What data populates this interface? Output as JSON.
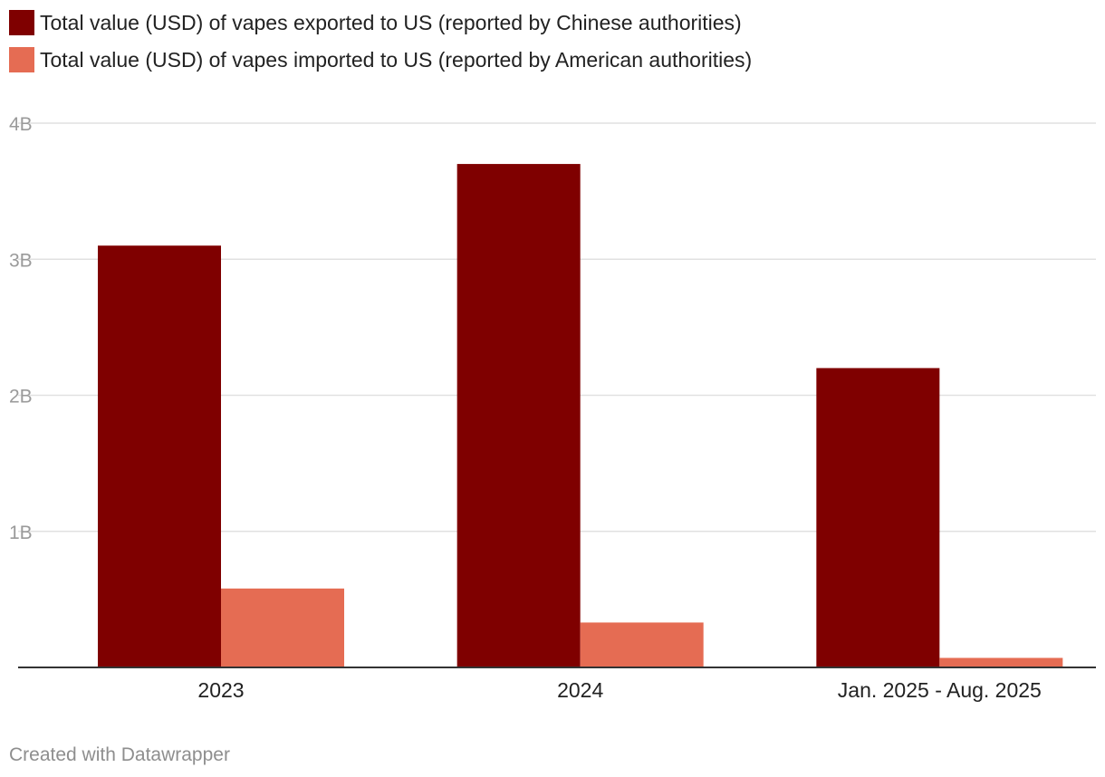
{
  "chart_data": {
    "type": "bar",
    "categories": [
      "2023",
      "2024",
      "Jan. 2025 - Aug. 2025"
    ],
    "series": [
      {
        "name": "Total value (USD) of vapes exported to US (reported by Chinese authorities)",
        "color": "#7f0000",
        "values": [
          3100000000,
          3700000000,
          2200000000
        ]
      },
      {
        "name": "Total value (USD) of vapes imported to US (reported by American authorities)",
        "color": "#e56c53",
        "values": [
          580000000,
          330000000,
          70000000
        ]
      }
    ],
    "ylim": [
      0,
      4000000000
    ],
    "yticks": [
      {
        "value": 1000000000,
        "label": "1B"
      },
      {
        "value": 2000000000,
        "label": "2B"
      },
      {
        "value": 3000000000,
        "label": "3B"
      },
      {
        "value": 4000000000,
        "label": "4B"
      }
    ],
    "grid": true,
    "legend_position": "top-left",
    "title": "",
    "xlabel": "",
    "ylabel": ""
  },
  "footer": {
    "credit": "Created with Datawrapper"
  }
}
